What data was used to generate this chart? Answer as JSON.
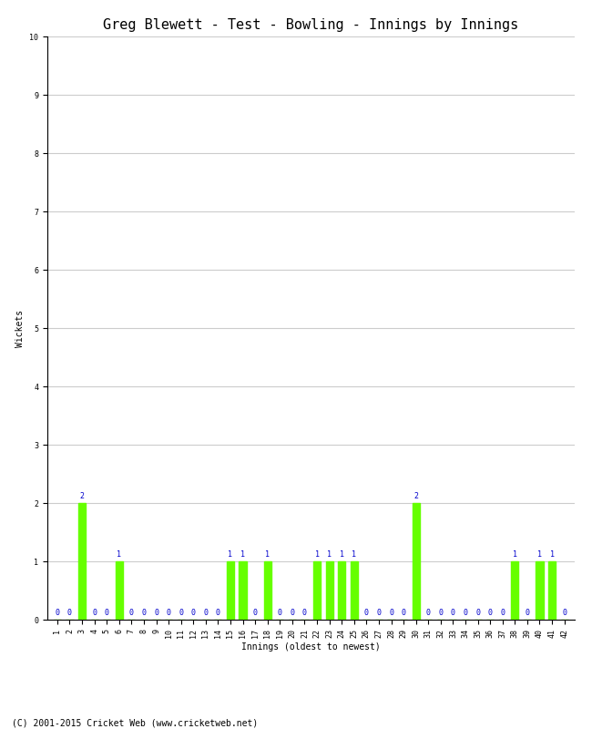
{
  "title": "Greg Blewett - Test - Bowling - Innings by Innings",
  "xlabel": "Innings (oldest to newest)",
  "ylabel": "Wickets",
  "ylim": [
    0,
    10
  ],
  "yticks": [
    0,
    1,
    2,
    3,
    4,
    5,
    6,
    7,
    8,
    9,
    10
  ],
  "innings": [
    1,
    2,
    3,
    4,
    5,
    6,
    7,
    8,
    9,
    10,
    11,
    12,
    13,
    14,
    15,
    16,
    17,
    18,
    19,
    20,
    21,
    22,
    23,
    24,
    25,
    26,
    27,
    28,
    29,
    30,
    31,
    32,
    33,
    34,
    35,
    36,
    37,
    38,
    39,
    40,
    41,
    42
  ],
  "wickets": [
    0,
    0,
    2,
    0,
    0,
    1,
    0,
    0,
    0,
    0,
    0,
    0,
    0,
    0,
    1,
    1,
    0,
    1,
    0,
    0,
    0,
    1,
    1,
    1,
    1,
    0,
    0,
    0,
    0,
    2,
    0,
    0,
    0,
    0,
    0,
    0,
    0,
    1,
    0,
    1,
    1,
    0
  ],
  "bar_color": "#66ff00",
  "label_color": "#0000cc",
  "grid_color": "#cccccc",
  "bg_color": "#ffffff",
  "copyright": "(C) 2001-2015 Cricket Web (www.cricketweb.net)",
  "title_fontsize": 11,
  "label_fontsize": 7,
  "tick_fontsize": 6,
  "value_fontsize": 6,
  "copyright_fontsize": 7
}
